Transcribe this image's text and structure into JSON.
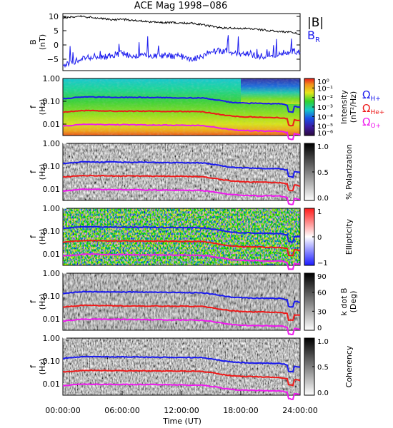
{
  "figure": {
    "title": "ACE Mag 1998−086",
    "xlabel": "Time (UT)",
    "xticks": [
      "00:00:00",
      "06:00:00",
      "12:00:00",
      "18:00:00",
      "24:00:00"
    ],
    "x_hours": [
      0,
      6,
      12,
      18,
      24
    ]
  },
  "legend": {
    "B_total": "|B|",
    "B_R": "B",
    "B_R_sub": "R",
    "omega_h": "Ω",
    "omega_h_sub": "H+",
    "omega_he": "Ω",
    "omega_he_sub": "He+",
    "omega_o": "Ω",
    "omega_o_sub": "O+"
  },
  "colors": {
    "B_total": "#000000",
    "B_R": "#1a1aee",
    "omega_h": "#1a1aee",
    "omega_he": "#ee1a1a",
    "omega_o": "#ee1aee"
  },
  "panels": [
    {
      "id": "field",
      "ylabel": "B",
      "ylabel2": "(nT)",
      "yticks": [
        "10",
        "5",
        "0",
        "−5"
      ]
    },
    {
      "id": "intensity",
      "ylabel": "f",
      "ylabel2": "(Hz)",
      "yticks": [
        "1.00",
        "0.10",
        "0.01"
      ],
      "cbar_title": "Intensity",
      "cbar_title2": "(nT²/Hz)",
      "cbar_ticks": [
        "10⁰",
        "10⁻¹",
        "10⁻²",
        "10⁻³",
        "10⁻⁴",
        "10⁻⁵",
        "10⁻⁶"
      ]
    },
    {
      "id": "polarization",
      "ylabel": "f",
      "ylabel2": "(Hz)",
      "yticks": [
        "1.00",
        "0.10",
        "0.01"
      ],
      "cbar_title": "% Polarization",
      "cbar_ticks": [
        "1.0",
        "0.5",
        "0.0"
      ]
    },
    {
      "id": "ellipticity",
      "ylabel": "f",
      "ylabel2": "(Hz)",
      "yticks": [
        "1.00",
        "0.10",
        "0.01"
      ],
      "cbar_title": "Ellipticity",
      "cbar_ticks": [
        "1",
        "0",
        "−1"
      ]
    },
    {
      "id": "kdotb",
      "ylabel": "f",
      "ylabel2": "(Hz)",
      "yticks": [
        "1.00",
        "0.10",
        "0.01"
      ],
      "cbar_title": "k dot B",
      "cbar_title2": "(Deg)",
      "cbar_ticks": [
        "90",
        "60",
        "30",
        "0"
      ]
    },
    {
      "id": "coherency",
      "ylabel": "f",
      "ylabel2": "(Hz)",
      "yticks": [
        "1.00",
        "0.10",
        "0.01"
      ],
      "cbar_title": "Coherency",
      "cbar_ticks": [
        "1.0",
        "0.5",
        "0.0"
      ]
    }
  ],
  "chart_data": {
    "type": "line",
    "title": "ACE Mag 1998−086",
    "xlabel": "Time (UT)",
    "xlim": [
      0,
      24
    ],
    "field_panel": {
      "ylabel": "B (nT)",
      "ylim": [
        -9,
        11
      ],
      "series": [
        {
          "name": "|B|",
          "x": [
            0,
            1,
            2,
            3,
            4,
            5,
            6,
            7,
            8,
            9,
            10,
            11,
            12,
            13,
            14,
            15,
            16,
            17,
            18,
            19,
            20,
            21,
            22,
            23,
            24
          ],
          "values": [
            9.5,
            9.8,
            10.0,
            9.6,
            9.2,
            8.8,
            9.0,
            8.6,
            8.3,
            8.0,
            7.9,
            7.8,
            7.7,
            7.6,
            7.2,
            6.5,
            6.0,
            5.9,
            5.8,
            5.6,
            5.3,
            5.0,
            4.8,
            4.4,
            3.8
          ]
        },
        {
          "name": "B_R",
          "x": [
            0,
            1,
            2,
            3,
            4,
            5,
            6,
            7,
            8,
            9,
            10,
            11,
            12,
            13,
            14,
            15,
            16,
            17,
            18,
            19,
            20,
            21,
            22,
            23,
            24
          ],
          "values": [
            -7.0,
            -6.0,
            -5.0,
            -4.0,
            -4.5,
            -3.5,
            -3.0,
            -4.0,
            -3.0,
            -4.0,
            -3.5,
            -4.0,
            -4.0,
            -5.0,
            -4.0,
            -2.5,
            -2.0,
            -2.5,
            -3.0,
            -3.5,
            -4.0,
            -3.5,
            -3.0,
            -2.0,
            -2.5
          ]
        }
      ]
    },
    "spectrogram_panels": {
      "ylabel": "f (Hz)",
      "ylim_log10": [
        -2.5,
        0
      ],
      "series": [
        {
          "name": "Ω H+",
          "x": [
            0,
            2,
            4,
            6,
            8,
            10,
            12,
            14,
            15,
            16,
            17,
            18,
            20,
            22,
            23,
            24
          ],
          "values": [
            0.13,
            0.155,
            0.152,
            0.15,
            0.148,
            0.145,
            0.142,
            0.14,
            0.125,
            0.105,
            0.09,
            0.085,
            0.08,
            0.078,
            0.062,
            0.055
          ]
        },
        {
          "name": "Ω He+",
          "x": [
            0,
            2,
            4,
            6,
            8,
            10,
            12,
            14,
            15,
            16,
            17,
            18,
            20,
            22,
            23,
            24
          ],
          "values": [
            0.033,
            0.039,
            0.038,
            0.037,
            0.037,
            0.036,
            0.036,
            0.035,
            0.031,
            0.026,
            0.023,
            0.021,
            0.02,
            0.019,
            0.016,
            0.014
          ]
        },
        {
          "name": "Ω O+",
          "x": [
            0,
            2,
            4,
            6,
            8,
            10,
            12,
            14,
            15,
            16,
            17,
            18,
            20,
            22,
            23,
            24
          ],
          "values": [
            0.0081,
            0.0097,
            0.0095,
            0.0094,
            0.0092,
            0.0091,
            0.0089,
            0.0087,
            0.0078,
            0.0066,
            0.0057,
            0.0053,
            0.005,
            0.0049,
            0.0039,
            0.0035
          ]
        }
      ]
    },
    "colorbars": [
      {
        "panel": "Intensity (nT²/Hz)",
        "scale": "log",
        "range": [
          1e-06,
          1
        ]
      },
      {
        "panel": "% Polarization",
        "range": [
          0,
          1
        ]
      },
      {
        "panel": "Ellipticity",
        "range": [
          -1,
          1
        ]
      },
      {
        "panel": "k dot B (Deg)",
        "range": [
          0,
          90
        ]
      },
      {
        "panel": "Coherency",
        "range": [
          0,
          1
        ]
      }
    ]
  }
}
